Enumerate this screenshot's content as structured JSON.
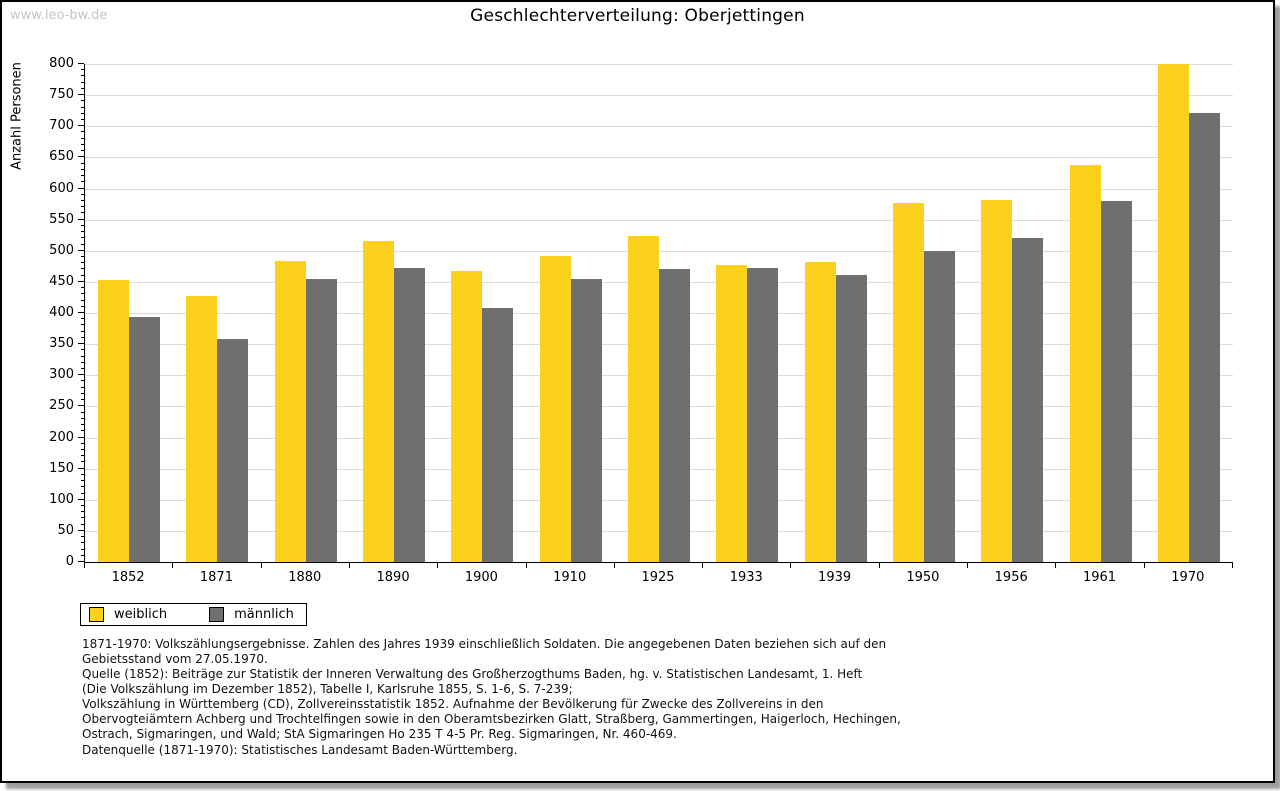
{
  "watermark": "www.leo-bw.de",
  "title": "Geschlechterverteilung: Oberjettingen",
  "chart_data": {
    "type": "bar",
    "title": "Geschlechterverteilung: Oberjettingen",
    "xlabel": "",
    "ylabel": "Anzahl Personen",
    "ylim": [
      0,
      800
    ],
    "ytick_step": 50,
    "ytick_minor_step": 10,
    "grid": true,
    "legend_position": "bottom-left",
    "categories": [
      "1852",
      "1871",
      "1880",
      "1890",
      "1900",
      "1910",
      "1925",
      "1933",
      "1939",
      "1950",
      "1956",
      "1961",
      "1970"
    ],
    "series": [
      {
        "name": "weiblich",
        "color": "#fcd11c",
        "values": [
          453,
          427,
          483,
          515,
          468,
          491,
          524,
          477,
          482,
          577,
          581,
          637,
          800
        ]
      },
      {
        "name": "männlich",
        "color": "#6f6f6f",
        "values": [
          394,
          359,
          454,
          473,
          408,
          455,
          471,
          473,
          461,
          500,
          521,
          580,
          722
        ]
      }
    ]
  },
  "legend": {
    "items": [
      {
        "label": "weiblich",
        "color": "#fcd11c"
      },
      {
        "label": "männlich",
        "color": "#6f6f6f"
      }
    ]
  },
  "footnotes": {
    "lines": [
      "1871-1970: Volkszählungsergebnisse. Zahlen des Jahres 1939 einschließlich Soldaten. Die angegebenen Daten beziehen sich auf den",
      "Gebietsstand vom 27.05.1970.",
      "Quelle (1852): Beiträge zur Statistik der Inneren Verwaltung des Großherzogthums Baden, hg. v. Statistischen Landesamt, 1. Heft",
      "(Die Volkszählung im Dezember 1852), Tabelle I, Karlsruhe 1855, S. 1-6, S. 7-239;",
      "Volkszählung in Württemberg (CD), Zollvereinsstatistik 1852. Aufnahme der Bevölkerung für Zwecke des Zollvereins in den",
      "Obervogteiämtern Achberg und Trochtelfingen sowie in den Oberamtsbezirken Glatt, Straßberg, Gammertingen, Haigerloch, Hechingen,",
      "Ostrach, Sigmaringen, und Wald; StA Sigmaringen Ho 235 T 4-5 Pr. Reg. Sigmaringen, Nr. 460-469."
    ],
    "datasource": "Datenquelle (1871-1970): Statistisches Landesamt Baden-Württemberg."
  },
  "colors": {
    "gridline": "#dcdcdc",
    "axis": "#000000",
    "watermark": "#c6c6c6",
    "background": "#ffffff",
    "frame_border": "#000000"
  }
}
